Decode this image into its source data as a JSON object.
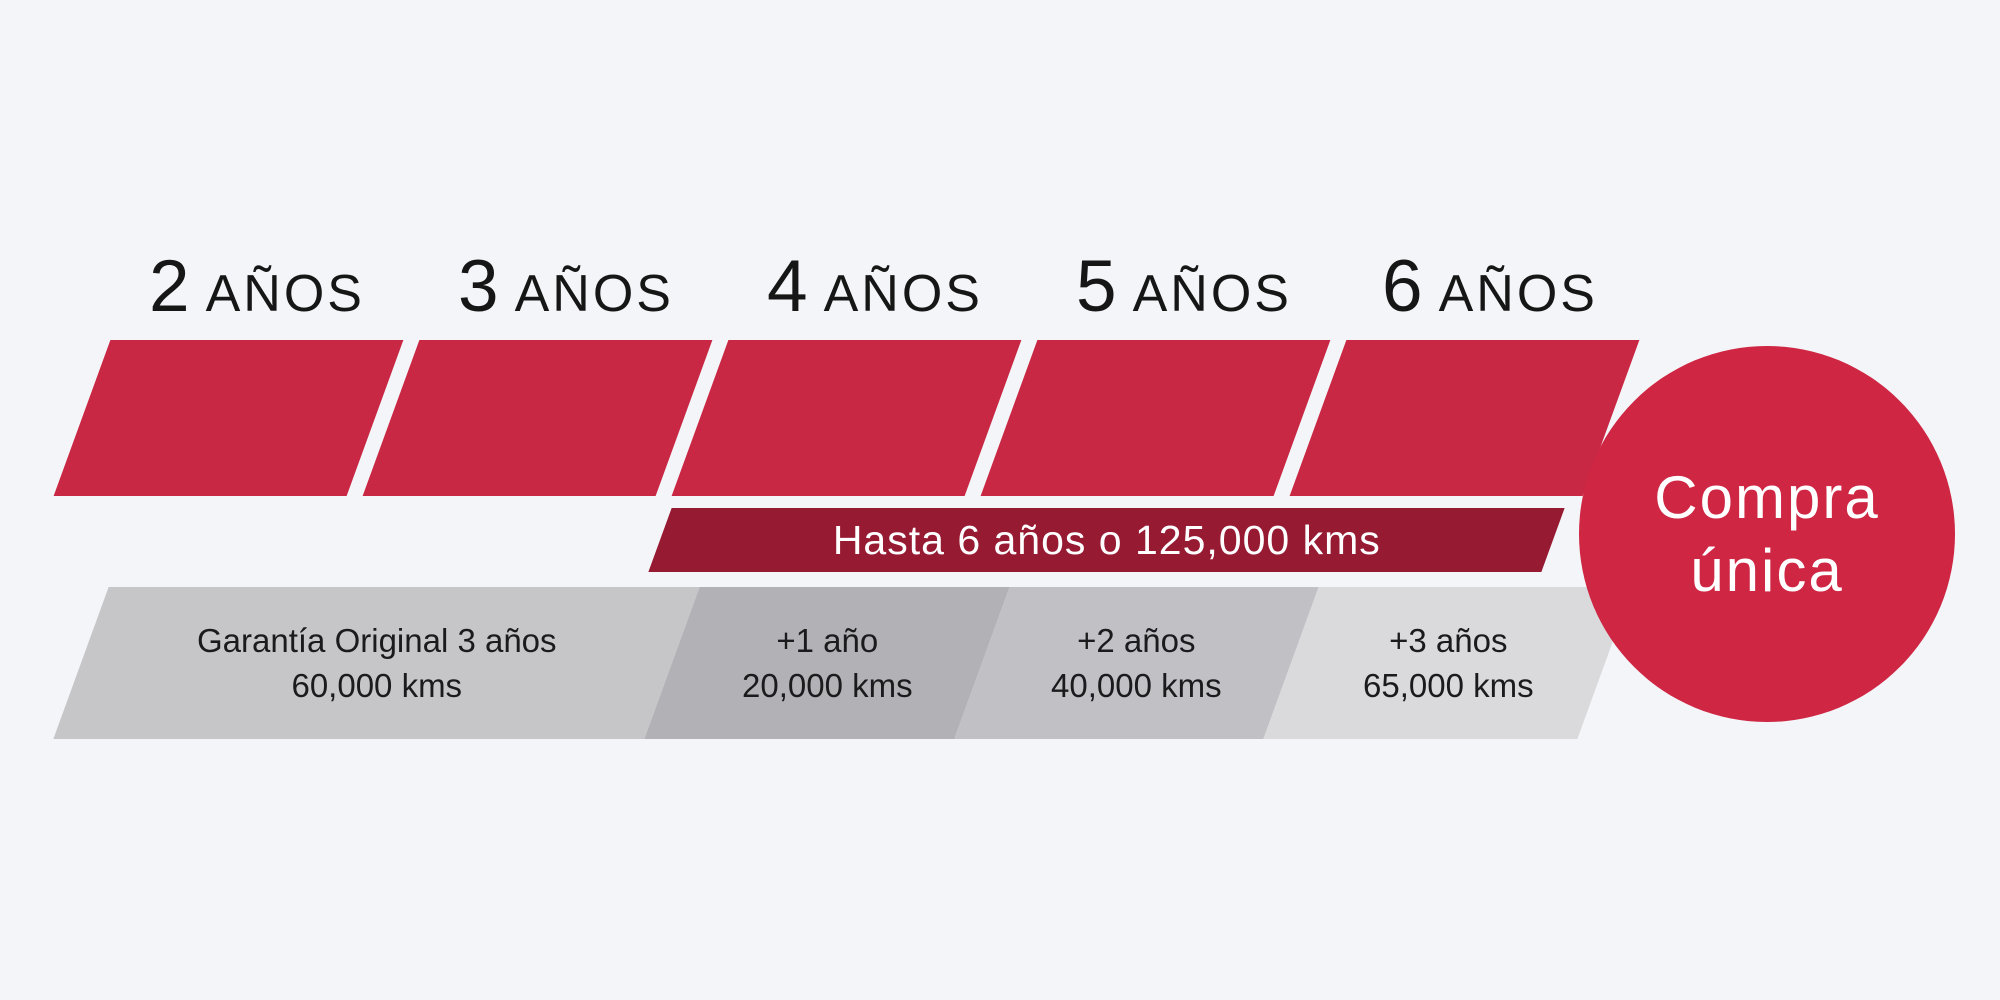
{
  "background_color": "#f4f5f8",
  "colors": {
    "segment_red": "#c92844",
    "banner_maroon": "#971a33",
    "circle_red": "#ce2643",
    "gray_section_1": "#c6c6c9",
    "gray_section_2": "#b2b2b6",
    "gray_section_3": "#c1c1c5",
    "gray_section_4": "#dadadd",
    "dark_text": "#1b1b1d",
    "white_text": "#ffffff"
  },
  "year_labels": [
    {
      "number": "2",
      "unit": "AÑOS"
    },
    {
      "number": "3",
      "unit": "AÑOS"
    },
    {
      "number": "4",
      "unit": "AÑOS"
    },
    {
      "number": "5",
      "unit": "AÑOS"
    },
    {
      "number": "6",
      "unit": "AÑOS"
    }
  ],
  "extension_banner": {
    "text": "Hasta 6 años o 125,000 kms"
  },
  "warranty_sections": [
    {
      "line1": "Garantía Original 3 años",
      "line2": "60,000 kms"
    },
    {
      "line1": "+1 año",
      "line2": "20,000 kms"
    },
    {
      "line1": "+2 años",
      "line2": "40,000 kms"
    },
    {
      "line1": "+3 años",
      "line2": "65,000 kms"
    }
  ],
  "purchase_badge": {
    "line1": "Compra",
    "line2": "única"
  }
}
